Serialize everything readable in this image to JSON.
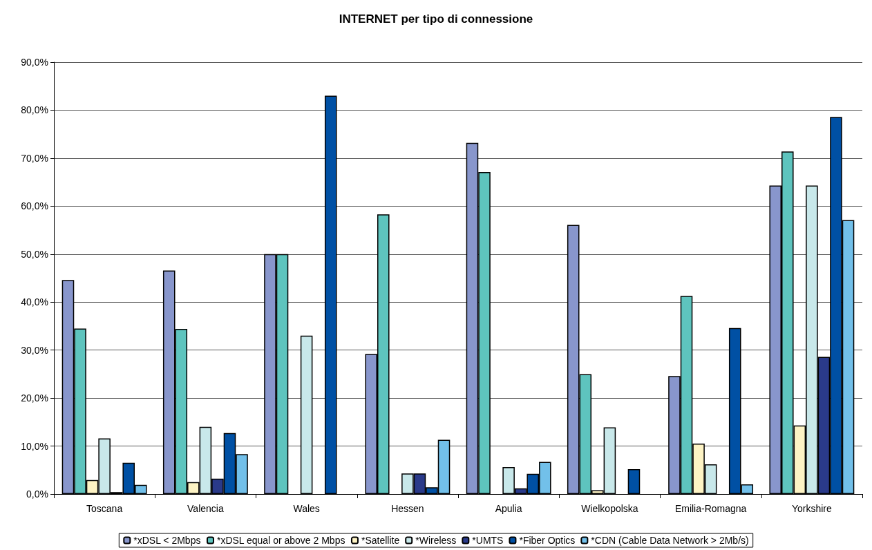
{
  "chart_data": {
    "type": "bar",
    "title": "INTERNET per tipo di connessione",
    "categories": [
      "Toscana",
      "Valencia",
      "Wales",
      "Hessen",
      "Apulia",
      "Wielkopolska",
      "Emilia-Romagna",
      "Yorkshire"
    ],
    "series": [
      {
        "name": "*xDSL < 2Mbps",
        "color": "#8896cc",
        "values": [
          44.6,
          46.6,
          50.0,
          29.2,
          73.2,
          56.1,
          24.6,
          64.3
        ]
      },
      {
        "name": "*xDSL equal or above 2 Mbps",
        "color": "#5ec4be",
        "values": [
          34.5,
          34.4,
          50.0,
          58.3,
          67.1,
          25.0,
          41.3,
          71.4
        ]
      },
      {
        "name": "*Satellite",
        "color": "#fdf3c4",
        "values": [
          2.9,
          2.5,
          null,
          null,
          null,
          0.8,
          10.5,
          14.3
        ]
      },
      {
        "name": "*Wireless",
        "color": "#c8e8ea",
        "values": [
          11.6,
          14.0,
          33.0,
          4.3,
          5.6,
          13.9,
          6.2,
          64.3
        ]
      },
      {
        "name": "*UMTS",
        "color": "#2a3a8a",
        "values": [
          0.4,
          3.2,
          null,
          4.3,
          1.2,
          null,
          null,
          28.6
        ]
      },
      {
        "name": "*Fiber Optics",
        "color": "#0050a4",
        "values": [
          6.5,
          12.7,
          83.0,
          1.4,
          4.2,
          5.2,
          34.6,
          78.6
        ]
      },
      {
        "name": "*CDN (Cable Data Network > 2Mb/s)",
        "color": "#72c0ea",
        "values": [
          1.9,
          8.3,
          null,
          11.3,
          6.7,
          null,
          2.0,
          57.1
        ]
      }
    ],
    "ylim": [
      0,
      90
    ],
    "yticks": [
      {
        "value": 0,
        "label": "0,0%"
      },
      {
        "value": 10,
        "label": "10,0%"
      },
      {
        "value": 20,
        "label": "20,0%"
      },
      {
        "value": 30,
        "label": "30,0%"
      },
      {
        "value": 40,
        "label": "40,0%"
      },
      {
        "value": 50,
        "label": "50,0%"
      },
      {
        "value": 60,
        "label": "60,0%"
      },
      {
        "value": 70,
        "label": "70,0%"
      },
      {
        "value": 80,
        "label": "80,0%"
      },
      {
        "value": 90,
        "label": "90,0%"
      }
    ],
    "grid": "y",
    "legend": "bottom"
  }
}
